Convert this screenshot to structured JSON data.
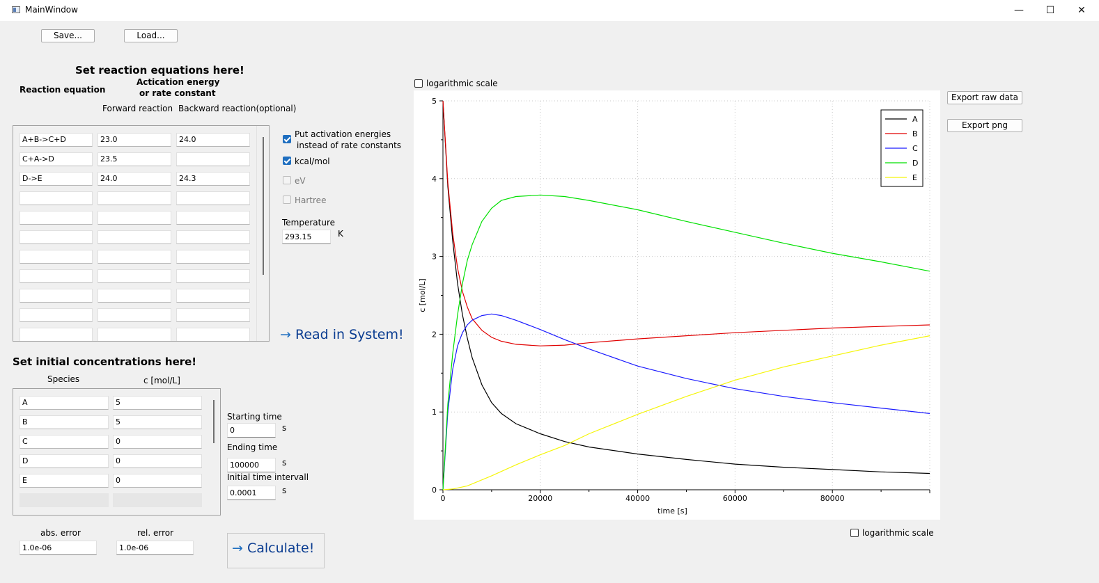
{
  "window": {
    "title": "MainWindow",
    "minimize_glyph": "—",
    "maximize_glyph": "☐",
    "close_glyph": "✕"
  },
  "toolbar": {
    "save_label": "Save...",
    "load_label": "Load..."
  },
  "reactions": {
    "heading": "Set reaction equations here!",
    "col_equation": "Reaction equation",
    "col_energy_line1": "Actication energy",
    "col_energy_line2": "or rate constant",
    "col_forward": "Forward reaction",
    "col_backward": "Backward reaction(optional)",
    "rows": [
      {
        "equation": "A+B->C+D",
        "forward": "23.0",
        "backward": "24.0"
      },
      {
        "equation": "C+A->D",
        "forward": "23.5",
        "backward": ""
      },
      {
        "equation": "D->E",
        "forward": "24.0",
        "backward": "24.3"
      },
      {
        "equation": "",
        "forward": "",
        "backward": ""
      },
      {
        "equation": "",
        "forward": "",
        "backward": ""
      },
      {
        "equation": "",
        "forward": "",
        "backward": ""
      },
      {
        "equation": "",
        "forward": "",
        "backward": ""
      },
      {
        "equation": "",
        "forward": "",
        "backward": ""
      },
      {
        "equation": "",
        "forward": "",
        "backward": ""
      },
      {
        "equation": "",
        "forward": "",
        "backward": ""
      },
      {
        "equation": "",
        "forward": "",
        "backward": ""
      }
    ]
  },
  "options": {
    "activation_line1": "Put activation energies",
    "activation_line2": "instead of rate constants",
    "activation_checked": true,
    "kcal_label": "kcal/mol",
    "kcal_checked": true,
    "ev_label": "eV",
    "hartree_label": "Hartree",
    "temperature_label": "Temperature",
    "temperature_value": "293.15",
    "temperature_unit": "K",
    "read_label": "Read in System!"
  },
  "concentrations": {
    "heading": "Set initial concentrations here!",
    "col_species": "Species",
    "col_conc": "c [mol/L]",
    "rows": [
      {
        "species": "A",
        "value": "5"
      },
      {
        "species": "B",
        "value": "5"
      },
      {
        "species": "C",
        "value": "0"
      },
      {
        "species": "D",
        "value": "0"
      },
      {
        "species": "E",
        "value": "0"
      }
    ]
  },
  "time": {
    "start_label": "Starting time",
    "start_value": "0",
    "end_label": "Ending time",
    "end_value": "100000",
    "interval_label": "Initial  time intervall",
    "interval_value": "0.0001",
    "unit": "s"
  },
  "errors": {
    "abs_label": "abs. error",
    "abs_value": "1.0e-06",
    "rel_label": "rel. error",
    "rel_value": "1.0e-06"
  },
  "calculate_label": "Calculate!",
  "arrow_glyph": "→",
  "plot": {
    "top_log_label": "logarithmic scale",
    "bottom_log_label": "logarithmic scale",
    "export_raw_label": "Export raw data",
    "export_png_label": "Export png"
  },
  "chart_data": {
    "type": "line",
    "title": "",
    "xlabel": "time [s]",
    "ylabel": "c [mol/L]",
    "xlim": [
      0,
      100000
    ],
    "ylim": [
      0,
      5
    ],
    "xticks": [
      0,
      20000,
      40000,
      60000,
      80000
    ],
    "yticks": [
      0,
      1,
      2,
      3,
      4,
      5
    ],
    "grid": true,
    "legend_position": "top-right",
    "series": [
      {
        "name": "A",
        "color": "#000000",
        "x": [
          0,
          1000,
          2000,
          3000,
          4000,
          5000,
          6000,
          8000,
          10000,
          12000,
          15000,
          20000,
          25000,
          30000,
          40000,
          50000,
          60000,
          70000,
          80000,
          90000,
          100000
        ],
        "y": [
          5.0,
          3.9,
          3.2,
          2.65,
          2.25,
          1.95,
          1.7,
          1.35,
          1.12,
          0.98,
          0.85,
          0.72,
          0.62,
          0.55,
          0.46,
          0.39,
          0.33,
          0.29,
          0.26,
          0.23,
          0.21
        ]
      },
      {
        "name": "B",
        "color": "#e00000",
        "x": [
          0,
          1000,
          2000,
          3000,
          4000,
          5000,
          6000,
          8000,
          10000,
          12000,
          15000,
          20000,
          25000,
          30000,
          40000,
          50000,
          60000,
          70000,
          80000,
          90000,
          100000
        ],
        "y": [
          5.0,
          3.95,
          3.3,
          2.85,
          2.55,
          2.35,
          2.2,
          2.05,
          1.96,
          1.91,
          1.87,
          1.85,
          1.86,
          1.89,
          1.94,
          1.98,
          2.02,
          2.05,
          2.08,
          2.1,
          2.12
        ]
      },
      {
        "name": "C",
        "color": "#1a1aff",
        "x": [
          0,
          1000,
          2000,
          3000,
          4000,
          5000,
          6000,
          8000,
          10000,
          12000,
          15000,
          20000,
          25000,
          30000,
          40000,
          50000,
          60000,
          70000,
          80000,
          90000,
          100000
        ],
        "y": [
          0,
          1.0,
          1.55,
          1.85,
          2.02,
          2.12,
          2.18,
          2.24,
          2.26,
          2.24,
          2.18,
          2.06,
          1.93,
          1.81,
          1.59,
          1.43,
          1.3,
          1.2,
          1.12,
          1.05,
          0.98
        ]
      },
      {
        "name": "D",
        "color": "#00e000",
        "x": [
          0,
          1000,
          2000,
          3000,
          4000,
          5000,
          6000,
          8000,
          10000,
          12000,
          15000,
          20000,
          25000,
          30000,
          40000,
          50000,
          60000,
          70000,
          80000,
          90000,
          100000
        ],
        "y": [
          0,
          1.1,
          1.75,
          2.25,
          2.65,
          2.95,
          3.15,
          3.45,
          3.62,
          3.72,
          3.77,
          3.79,
          3.77,
          3.72,
          3.6,
          3.45,
          3.31,
          3.17,
          3.04,
          2.93,
          2.81
        ]
      },
      {
        "name": "E",
        "color": "#f5f50a",
        "x": [
          0,
          2000,
          5000,
          10000,
          15000,
          20000,
          25000,
          30000,
          40000,
          50000,
          60000,
          70000,
          80000,
          90000,
          100000
        ],
        "y": [
          0,
          0.01,
          0.05,
          0.18,
          0.32,
          0.45,
          0.57,
          0.72,
          0.97,
          1.2,
          1.41,
          1.58,
          1.72,
          1.86,
          1.98
        ]
      }
    ]
  }
}
